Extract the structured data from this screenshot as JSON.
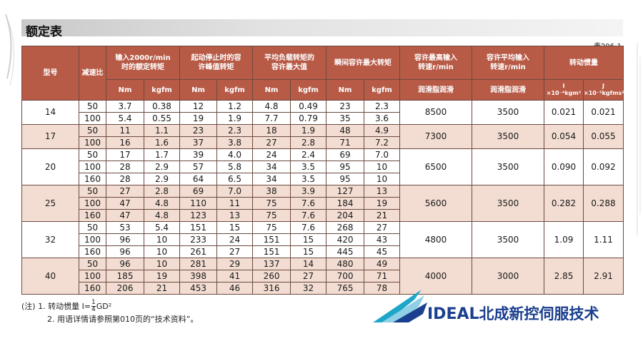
{
  "title": "额定表",
  "table_code": "表206-1",
  "header": {
    "model": "型号",
    "ratio": "减速比",
    "rated_torque": "输入2000r/min\n时的额定转矩",
    "start_stop_torque": "起动停止时的容\n许峰值转矩",
    "avg_load_torque": "平均负载转矩的\n容许最大值",
    "momentary_torque": "瞬间容许最大转矩",
    "max_input_speed": "容许最高输入\n转速r/min",
    "avg_input_speed": "容许平均输入\n转速r/min",
    "inertia": "转动惯量",
    "unit_nm": "Nm",
    "unit_kgfm": "kgfm",
    "grease": "润滑脂润滑",
    "grease_label": "润滑脂润滑",
    "inertia_I": "I",
    "inertia_I_unit": "×10⁻⁴kgm²",
    "inertia_J": "J",
    "inertia_J_unit": "×10⁻⁵kgfms²"
  },
  "groups": [
    {
      "model": "14",
      "max_speed": "8500",
      "avg_speed": "3500",
      "I": "0.021",
      "J": "0.021",
      "rows": [
        [
          "50",
          "3.7",
          "0.38",
          "12",
          "1.2",
          "4.8",
          "0.49",
          "23",
          "2.3"
        ],
        [
          "100",
          "5.4",
          "0.55",
          "19",
          "1.9",
          "7.7",
          "0.79",
          "35",
          "3.6"
        ]
      ]
    },
    {
      "model": "17",
      "max_speed": "7300",
      "avg_speed": "3500",
      "I": "0.054",
      "J": "0.055",
      "rows": [
        [
          "50",
          "11",
          "1.1",
          "23",
          "2.3",
          "18",
          "1.9",
          "48",
          "4.9"
        ],
        [
          "100",
          "16",
          "1.6",
          "37",
          "3.8",
          "27",
          "2.8",
          "71",
          "7.2"
        ]
      ]
    },
    {
      "model": "20",
      "max_speed": "6500",
      "avg_speed": "3500",
      "I": "0.090",
      "J": "0.092",
      "rows": [
        [
          "50",
          "17",
          "1.7",
          "39",
          "4.0",
          "24",
          "2.4",
          "69",
          "7.0"
        ],
        [
          "100",
          "28",
          "2.9",
          "57",
          "5.8",
          "34",
          "3.5",
          "95",
          "10"
        ],
        [
          "160",
          "28",
          "2.9",
          "64",
          "6.5",
          "34",
          "3.5",
          "95",
          "10"
        ]
      ]
    },
    {
      "model": "25",
      "max_speed": "5600",
      "avg_speed": "3500",
      "I": "0.282",
      "J": "0.288",
      "rows": [
        [
          "50",
          "27",
          "2.8",
          "69",
          "7.0",
          "38",
          "3.9",
          "127",
          "13"
        ],
        [
          "100",
          "47",
          "4.8",
          "110",
          "11",
          "75",
          "7.6",
          "184",
          "19"
        ],
        [
          "160",
          "47",
          "4.8",
          "123",
          "13",
          "75",
          "7.6",
          "204",
          "21"
        ]
      ]
    },
    {
      "model": "32",
      "max_speed": "4800",
      "avg_speed": "3500",
      "I": "1.09",
      "J": "1.11",
      "rows": [
        [
          "50",
          "53",
          "5.4",
          "151",
          "15",
          "75",
          "7.6",
          "268",
          "27"
        ],
        [
          "100",
          "96",
          "10",
          "233",
          "24",
          "151",
          "15",
          "420",
          "43"
        ],
        [
          "160",
          "96",
          "10",
          "261",
          "27",
          "151",
          "15",
          "445",
          "45"
        ]
      ]
    },
    {
      "model": "40",
      "max_speed": "4000",
      "avg_speed": "3000",
      "I": "2.85",
      "J": "2.91",
      "rows": [
        [
          "50",
          "96",
          "10",
          "281",
          "29",
          "137",
          "14",
          "480",
          "49"
        ],
        [
          "100",
          "185",
          "19",
          "398",
          "41",
          "260",
          "27",
          "700",
          "71"
        ],
        [
          "160",
          "206",
          "21",
          "453",
          "46",
          "316",
          "32",
          "765",
          "78"
        ]
      ]
    }
  ],
  "notes": {
    "prefix": "(注) 1. 转动惯量   I=",
    "frac_num": "1",
    "frac_den": "4",
    "suffix": "GD²",
    "line2": "2. 用语详情请参照第010页的“技术资料”。"
  },
  "logo": {
    "brand": "IDEAL",
    "company": "北成新控伺服技术",
    "colors": {
      "navy": "#1b3f8f",
      "teal": "#1ea6c8",
      "light": "#8fd0e6"
    }
  },
  "colors": {
    "header": "#b75a46",
    "shaded_row": "#f3ddd2",
    "border": "#6b4a40"
  }
}
